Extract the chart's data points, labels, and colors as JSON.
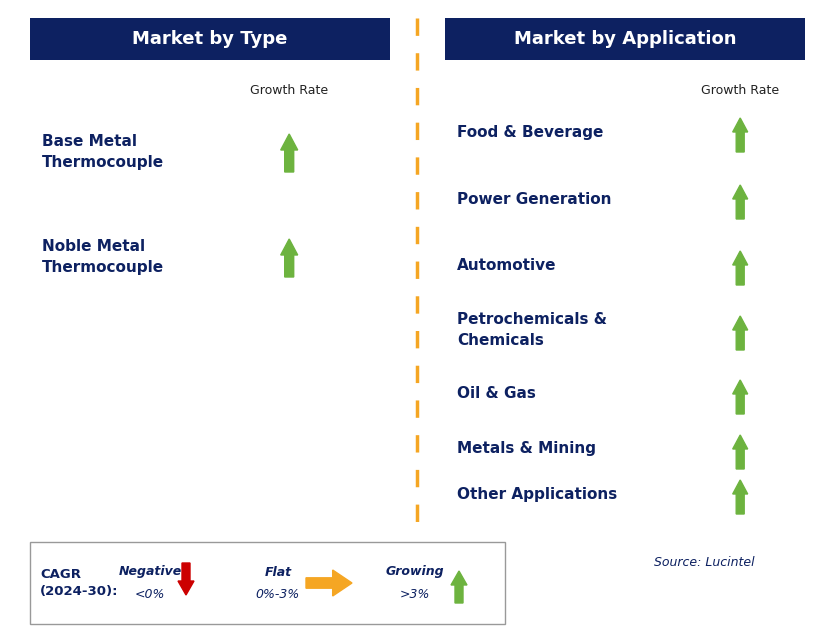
{
  "left_header": "Market by Type",
  "right_header": "Market by Application",
  "header_bg": "#0d2161",
  "header_text_color": "#ffffff",
  "growth_rate_label": "Growth Rate",
  "left_items": [
    "Base Metal\nThermocouple",
    "Noble Metal\nThermocouple"
  ],
  "right_items": [
    "Food & Beverage",
    "Power Generation",
    "Automotive",
    "Petrochemicals &\nChemicals",
    "Oil & Gas",
    "Metals & Mining",
    "Other Applications"
  ],
  "item_text_color": "#0d2161",
  "arrow_green": "#6db33f",
  "arrow_red": "#cc0000",
  "arrow_yellow": "#f5a623",
  "divider_color": "#f5a623",
  "source_text": "Source: Lucintel",
  "legend_negative_label": "Negative",
  "legend_negative_range": "<0%",
  "legend_flat_label": "Flat",
  "legend_flat_range": "0%-3%",
  "legend_growing_label": "Growing",
  "legend_growing_range": ">3%",
  "background_color": "#ffffff",
  "fig_width": 8.29,
  "fig_height": 6.42,
  "dpi": 100
}
